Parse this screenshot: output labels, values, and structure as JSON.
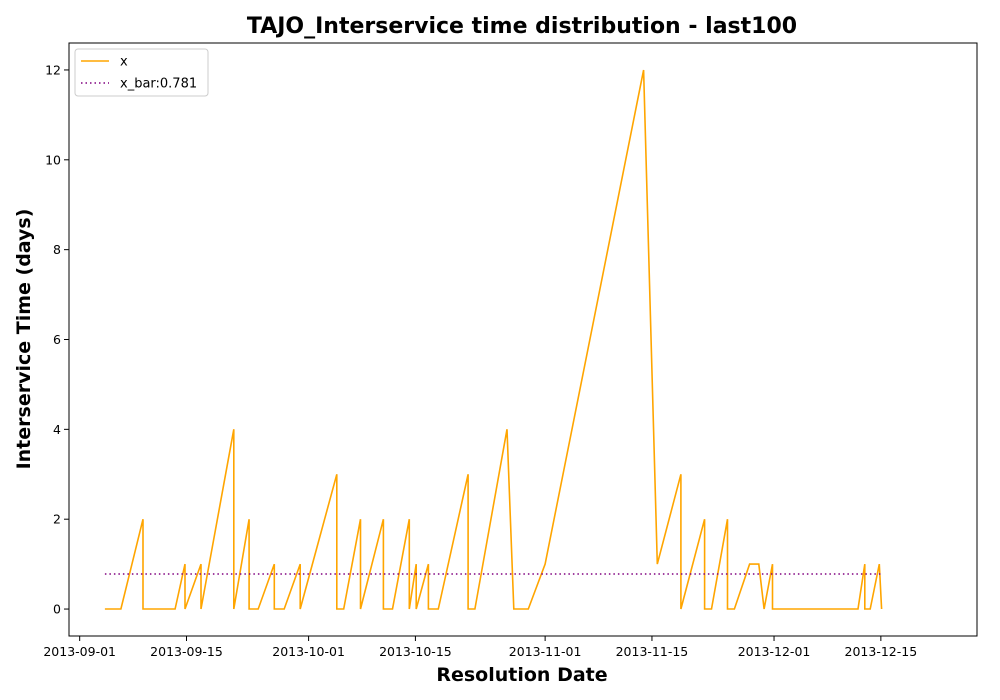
{
  "chart_data": {
    "type": "line",
    "title": "TAJO_Interservice time distribution - last100",
    "xlabel": "Resolution Date",
    "ylabel": "Interservice Time (days)",
    "xlim_days": [
      -1.4,
      117.6
    ],
    "ylim": [
      -0.6,
      12.6
    ],
    "x_origin": "2013-09-01",
    "xticks": [
      {
        "day": 0,
        "label": "2013-09-01"
      },
      {
        "day": 14,
        "label": "2013-09-15"
      },
      {
        "day": 30,
        "label": "2013-10-01"
      },
      {
        "day": 44,
        "label": "2013-10-15"
      },
      {
        "day": 61,
        "label": "2013-11-01"
      },
      {
        "day": 75,
        "label": "2013-11-15"
      },
      {
        "day": 91,
        "label": "2013-12-01"
      },
      {
        "day": 105,
        "label": "2013-12-15"
      }
    ],
    "yticks": [
      0,
      2,
      4,
      6,
      8,
      10,
      12
    ],
    "legend": {
      "location": "upper-left",
      "entries": [
        {
          "label": "x",
          "series": "x"
        },
        {
          "label": "x_bar:0.781",
          "series": "x_bar"
        }
      ]
    },
    "series": [
      {
        "name": "x",
        "color": "#FFA500",
        "style": "solid",
        "points": [
          [
            3.3,
            0
          ],
          [
            5.4,
            0
          ],
          [
            8.3,
            2
          ],
          [
            8.3,
            0
          ],
          [
            12.5,
            0
          ],
          [
            13.8,
            1
          ],
          [
            13.8,
            0
          ],
          [
            15.9,
            1
          ],
          [
            15.9,
            0
          ],
          [
            20.2,
            4
          ],
          [
            20.2,
            0
          ],
          [
            22.2,
            2
          ],
          [
            22.2,
            0
          ],
          [
            23.4,
            0
          ],
          [
            25.5,
            1
          ],
          [
            25.5,
            0
          ],
          [
            26.8,
            0
          ],
          [
            28.9,
            1
          ],
          [
            28.9,
            0
          ],
          [
            33.7,
            3
          ],
          [
            33.7,
            0
          ],
          [
            34.6,
            0
          ],
          [
            36.8,
            2
          ],
          [
            36.8,
            0
          ],
          [
            39.8,
            2
          ],
          [
            39.8,
            0
          ],
          [
            41.0,
            0
          ],
          [
            43.2,
            2
          ],
          [
            43.2,
            0
          ],
          [
            44.1,
            1
          ],
          [
            44.1,
            0
          ],
          [
            45.7,
            1
          ],
          [
            45.7,
            0
          ],
          [
            47.0,
            0
          ],
          [
            50.9,
            3
          ],
          [
            50.9,
            0
          ],
          [
            51.8,
            0
          ],
          [
            56.0,
            4
          ],
          [
            56.9,
            0
          ],
          [
            58.8,
            0
          ],
          [
            61.0,
            1
          ],
          [
            73.9,
            12
          ],
          [
            75.7,
            1
          ],
          [
            78.8,
            3
          ],
          [
            78.8,
            0
          ],
          [
            81.9,
            2
          ],
          [
            81.9,
            0
          ],
          [
            82.8,
            0
          ],
          [
            84.9,
            2
          ],
          [
            84.9,
            0
          ],
          [
            85.8,
            0
          ],
          [
            87.8,
            1
          ],
          [
            89.0,
            1
          ],
          [
            89.7,
            0
          ],
          [
            90.8,
            1
          ],
          [
            90.8,
            0
          ],
          [
            102.0,
            0
          ],
          [
            102.9,
            1
          ],
          [
            102.9,
            0
          ],
          [
            103.6,
            0
          ],
          [
            104.8,
            1
          ],
          [
            105.1,
            0
          ]
        ]
      },
      {
        "name": "x_bar",
        "color": "#800080",
        "style": "dotted",
        "points": [
          [
            3.3,
            0.781
          ],
          [
            105.1,
            0.781
          ]
        ]
      }
    ]
  }
}
